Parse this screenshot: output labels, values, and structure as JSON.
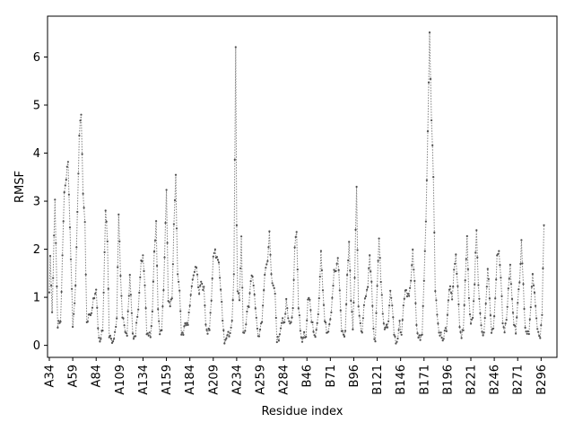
{
  "chart_data": {
    "type": "line",
    "title": "",
    "xlabel": "Residue index",
    "ylabel": "RMSF",
    "ylim": [
      -0.25,
      6.85
    ],
    "yticks": [
      0,
      1,
      2,
      3,
      4,
      5,
      6
    ],
    "xlim": [
      0,
      540
    ],
    "xtick_labels": [
      "A34",
      "A59",
      "A84",
      "A109",
      "A134",
      "A159",
      "A184",
      "A209",
      "A234",
      "A259",
      "A284",
      "B46",
      "B71",
      "B96",
      "B121",
      "B146",
      "B171",
      "B196",
      "B221",
      "B246",
      "B271",
      "B296"
    ],
    "xtick_positions": [
      0,
      25,
      50,
      75,
      100,
      125,
      150,
      175,
      200,
      225,
      250,
      275,
      300,
      325,
      350,
      375,
      400,
      425,
      450,
      475,
      500,
      525
    ],
    "grid": false,
    "line_color": "#808080",
    "marker_color": "#505050",
    "keypoints": [
      [
        0,
        1.1
      ],
      [
        1,
        1.8
      ],
      [
        3,
        0.7
      ],
      [
        6,
        3.0
      ],
      [
        9,
        0.4
      ],
      [
        12,
        0.5
      ],
      [
        16,
        3.2
      ],
      [
        18,
        3.5
      ],
      [
        20,
        3.8
      ],
      [
        22,
        2.5
      ],
      [
        25,
        0.4
      ],
      [
        28,
        1.2
      ],
      [
        32,
        4.4
      ],
      [
        34,
        4.8
      ],
      [
        36,
        3.2
      ],
      [
        38,
        2.5
      ],
      [
        40,
        0.5
      ],
      [
        45,
        0.7
      ],
      [
        50,
        1.2
      ],
      [
        52,
        0.3
      ],
      [
        54,
        0.1
      ],
      [
        57,
        0.3
      ],
      [
        60,
        2.8
      ],
      [
        62,
        2.2
      ],
      [
        64,
        0.2
      ],
      [
        66,
        0.1
      ],
      [
        68,
        0.1
      ],
      [
        70,
        0.2
      ],
      [
        72,
        0.6
      ],
      [
        74,
        2.7
      ],
      [
        76,
        1.5
      ],
      [
        78,
        0.6
      ],
      [
        80,
        0.4
      ],
      [
        83,
        0.2
      ],
      [
        86,
        1.5
      ],
      [
        89,
        0.2
      ],
      [
        92,
        0.2
      ],
      [
        95,
        0.8
      ],
      [
        98,
        1.7
      ],
      [
        100,
        1.9
      ],
      [
        102,
        1.2
      ],
      [
        104,
        0.3
      ],
      [
        106,
        0.2
      ],
      [
        108,
        0.2
      ],
      [
        110,
        0.7
      ],
      [
        112,
        1.9
      ],
      [
        114,
        2.6
      ],
      [
        116,
        0.7
      ],
      [
        118,
        0.3
      ],
      [
        120,
        0.3
      ],
      [
        122,
        1.2
      ],
      [
        125,
        3.2
      ],
      [
        127,
        1.0
      ],
      [
        129,
        0.8
      ],
      [
        131,
        1.0
      ],
      [
        133,
        2.5
      ],
      [
        135,
        3.5
      ],
      [
        137,
        1.5
      ],
      [
        139,
        1.1
      ],
      [
        141,
        0.3
      ],
      [
        143,
        0.2
      ],
      [
        145,
        0.5
      ],
      [
        148,
        0.4
      ],
      [
        150,
        0.9
      ],
      [
        152,
        1.2
      ],
      [
        155,
        1.6
      ],
      [
        157,
        1.6
      ],
      [
        160,
        1.1
      ],
      [
        162,
        1.3
      ],
      [
        165,
        1.2
      ],
      [
        167,
        0.4
      ],
      [
        169,
        0.3
      ],
      [
        171,
        0.3
      ],
      [
        173,
        1.0
      ],
      [
        175,
        1.8
      ],
      [
        177,
        2.0
      ],
      [
        179,
        1.8
      ],
      [
        181,
        1.7
      ],
      [
        183,
        1.2
      ],
      [
        185,
        0.5
      ],
      [
        187,
        0.1
      ],
      [
        189,
        0.1
      ],
      [
        191,
        0.3
      ],
      [
        193,
        0.2
      ],
      [
        195,
        0.5
      ],
      [
        197,
        1.5
      ],
      [
        198,
        3.8
      ],
      [
        199,
        6.2
      ],
      [
        200,
        2.5
      ],
      [
        201,
        1.2
      ],
      [
        203,
        0.9
      ],
      [
        205,
        2.3
      ],
      [
        207,
        0.2
      ],
      [
        209,
        0.3
      ],
      [
        211,
        0.7
      ],
      [
        213,
        0.8
      ],
      [
        215,
        1.4
      ],
      [
        217,
        1.4
      ],
      [
        219,
        1.1
      ],
      [
        221,
        0.5
      ],
      [
        223,
        0.2
      ],
      [
        225,
        0.3
      ],
      [
        227,
        0.5
      ],
      [
        229,
        1.2
      ],
      [
        231,
        1.6
      ],
      [
        233,
        1.8
      ],
      [
        235,
        2.3
      ],
      [
        237,
        1.5
      ],
      [
        239,
        1.2
      ],
      [
        241,
        1.1
      ],
      [
        243,
        0.1
      ],
      [
        245,
        0.1
      ],
      [
        247,
        0.4
      ],
      [
        249,
        0.5
      ],
      [
        251,
        0.5
      ],
      [
        253,
        0.9
      ],
      [
        255,
        0.6
      ],
      [
        258,
        0.4
      ],
      [
        260,
        0.8
      ],
      [
        262,
        2.0
      ],
      [
        264,
        2.4
      ],
      [
        266,
        0.8
      ],
      [
        268,
        0.3
      ],
      [
        270,
        0.1
      ],
      [
        272,
        0.2
      ],
      [
        274,
        0.2
      ],
      [
        276,
        0.9
      ],
      [
        278,
        1.0
      ],
      [
        280,
        0.5
      ],
      [
        282,
        0.3
      ],
      [
        284,
        0.2
      ],
      [
        286,
        0.4
      ],
      [
        288,
        1.0
      ],
      [
        290,
        1.9
      ],
      [
        292,
        1.2
      ],
      [
        294,
        0.5
      ],
      [
        296,
        0.3
      ],
      [
        298,
        0.3
      ],
      [
        300,
        0.5
      ],
      [
        302,
        1.0
      ],
      [
        304,
        1.5
      ],
      [
        306,
        1.6
      ],
      [
        308,
        1.8
      ],
      [
        310,
        1.2
      ],
      [
        312,
        0.3
      ],
      [
        314,
        0.2
      ],
      [
        316,
        0.3
      ],
      [
        318,
        1.4
      ],
      [
        320,
        2.2
      ],
      [
        322,
        0.9
      ],
      [
        324,
        0.4
      ],
      [
        326,
        1.4
      ],
      [
        328,
        3.3
      ],
      [
        330,
        0.8
      ],
      [
        332,
        0.4
      ],
      [
        334,
        0.3
      ],
      [
        336,
        0.8
      ],
      [
        338,
        1.1
      ],
      [
        340,
        1.2
      ],
      [
        342,
        1.9
      ],
      [
        344,
        1.3
      ],
      [
        346,
        0.3
      ],
      [
        348,
        0.1
      ],
      [
        350,
        1.2
      ],
      [
        352,
        2.3
      ],
      [
        354,
        1.3
      ],
      [
        356,
        0.7
      ],
      [
        358,
        0.3
      ],
      [
        360,
        0.4
      ],
      [
        362,
        0.5
      ],
      [
        364,
        1.1
      ],
      [
        366,
        0.9
      ],
      [
        368,
        0.2
      ],
      [
        370,
        0.1
      ],
      [
        372,
        0.1
      ],
      [
        374,
        0.5
      ],
      [
        376,
        0.2
      ],
      [
        378,
        0.8
      ],
      [
        380,
        1.2
      ],
      [
        382,
        1.0
      ],
      [
        384,
        1.1
      ],
      [
        386,
        1.3
      ],
      [
        388,
        2.0
      ],
      [
        390,
        1.3
      ],
      [
        392,
        0.4
      ],
      [
        394,
        0.2
      ],
      [
        396,
        0.1
      ],
      [
        398,
        0.3
      ],
      [
        400,
        1.3
      ],
      [
        402,
        2.6
      ],
      [
        404,
        4.4
      ],
      [
        406,
        6.5
      ],
      [
        408,
        4.7
      ],
      [
        410,
        3.5
      ],
      [
        412,
        1.2
      ],
      [
        414,
        0.6
      ],
      [
        416,
        0.3
      ],
      [
        418,
        0.2
      ],
      [
        420,
        0.1
      ],
      [
        422,
        0.3
      ],
      [
        524,
        0.1
      ],
      [
        526,
        0.7
      ],
      [
        528,
        2.5
      ]
    ]
  }
}
